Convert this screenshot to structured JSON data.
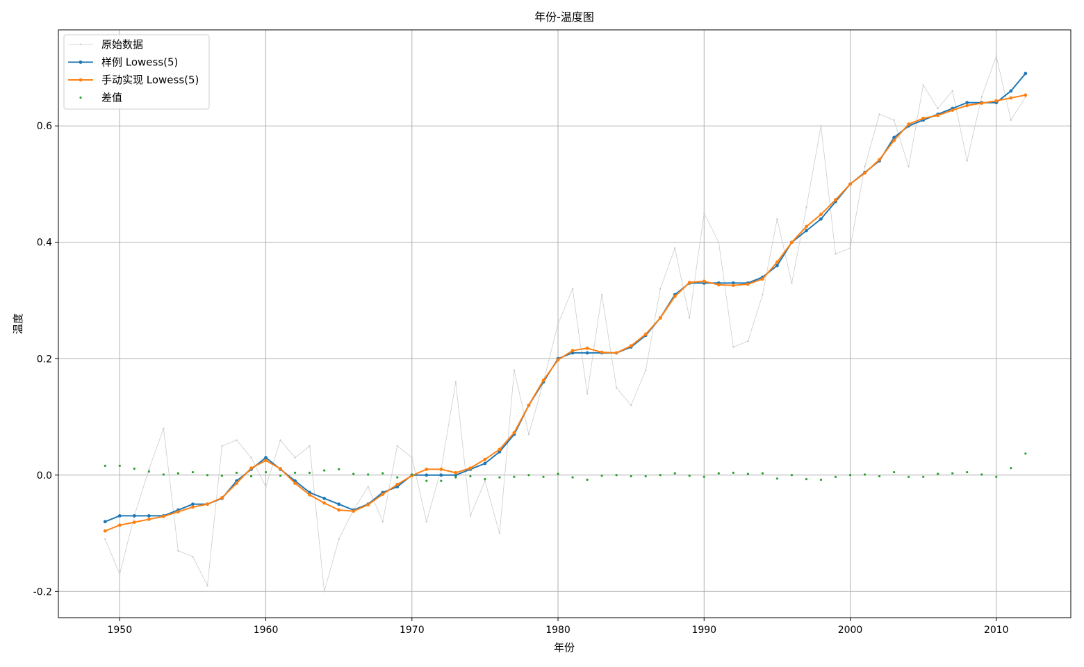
{
  "chart_data": {
    "type": "line",
    "title": "年份-温度图",
    "xlabel": "年份",
    "ylabel": "温度",
    "xlim": [
      1945.8,
      2015.1
    ],
    "ylim": [
      -0.245,
      0.765
    ],
    "xticks": [
      1950,
      1960,
      1970,
      1980,
      1990,
      2000,
      2010
    ],
    "xtick_labels": [
      "1950",
      "1960",
      "1970",
      "1980",
      "1990",
      "2000",
      "2010"
    ],
    "yticks": [
      -0.2,
      0.0,
      0.2,
      0.4,
      0.6
    ],
    "ytick_labels": [
      "-0.2",
      "0.0",
      "0.2",
      "0.4",
      "0.6"
    ],
    "grid": true,
    "legend_position": "top-left",
    "x": [
      1949,
      1950,
      1951,
      1952,
      1953,
      1954,
      1955,
      1956,
      1957,
      1958,
      1959,
      1960,
      1961,
      1962,
      1963,
      1964,
      1965,
      1966,
      1967,
      1968,
      1969,
      1970,
      1971,
      1972,
      1973,
      1974,
      1975,
      1976,
      1977,
      1978,
      1979,
      1980,
      1981,
      1982,
      1983,
      1984,
      1985,
      1986,
      1987,
      1988,
      1989,
      1990,
      1991,
      1992,
      1993,
      1994,
      1995,
      1996,
      1997,
      1998,
      1999,
      2000,
      2001,
      2002,
      2003,
      2004,
      2005,
      2006,
      2007,
      2008,
      2009,
      2010,
      2011,
      2012
    ],
    "series": [
      {
        "name": "原始数据",
        "color": "#cccccc",
        "style": "thin-line",
        "values": [
          -0.11,
          -0.17,
          -0.07,
          0.01,
          0.08,
          -0.13,
          -0.14,
          -0.19,
          0.05,
          0.06,
          0.03,
          -0.02,
          0.06,
          0.03,
          0.05,
          -0.2,
          -0.11,
          -0.06,
          -0.02,
          -0.08,
          0.05,
          0.03,
          -0.08,
          0.01,
          0.16,
          -0.07,
          -0.01,
          -0.1,
          0.18,
          0.07,
          0.16,
          0.26,
          0.32,
          0.14,
          0.31,
          0.15,
          0.12,
          0.18,
          0.32,
          0.39,
          0.27,
          0.45,
          0.4,
          0.22,
          0.23,
          0.31,
          0.44,
          0.33,
          0.46,
          0.6,
          0.38,
          0.39,
          0.53,
          0.62,
          0.61,
          0.53,
          0.67,
          0.63,
          0.66,
          0.54,
          0.65,
          0.72,
          0.61,
          0.65
        ]
      },
      {
        "name": "样例 Lowess(5)",
        "color": "#1f77b4",
        "style": "line-marker",
        "values": [
          -0.08,
          -0.07,
          -0.07,
          -0.07,
          -0.07,
          -0.06,
          -0.05,
          -0.05,
          -0.04,
          -0.01,
          0.01,
          0.03,
          0.01,
          -0.01,
          -0.03,
          -0.04,
          -0.05,
          -0.06,
          -0.05,
          -0.03,
          -0.02,
          0.0,
          0.0,
          0.0,
          0.0,
          0.01,
          0.02,
          0.04,
          0.07,
          0.12,
          0.16,
          0.2,
          0.21,
          0.21,
          0.21,
          0.21,
          0.22,
          0.24,
          0.27,
          0.31,
          0.33,
          0.33,
          0.33,
          0.33,
          0.33,
          0.34,
          0.36,
          0.4,
          0.42,
          0.44,
          0.47,
          0.5,
          0.52,
          0.54,
          0.58,
          0.6,
          0.61,
          0.62,
          0.63,
          0.64,
          0.64,
          0.64,
          0.66,
          0.69
        ]
      },
      {
        "name": "手动实现 Lowess(5)",
        "color": "#ff7f0e",
        "style": "line-marker",
        "values": [
          -0.096,
          -0.086,
          -0.081,
          -0.076,
          -0.071,
          -0.063,
          -0.055,
          -0.05,
          -0.039,
          -0.014,
          0.012,
          0.025,
          0.011,
          -0.014,
          -0.034,
          -0.048,
          -0.06,
          -0.062,
          -0.051,
          -0.033,
          -0.016,
          -0.001,
          0.01,
          0.01,
          0.004,
          0.012,
          0.027,
          0.044,
          0.073,
          0.12,
          0.163,
          0.198,
          0.214,
          0.218,
          0.211,
          0.21,
          0.222,
          0.242,
          0.27,
          0.307,
          0.331,
          0.333,
          0.327,
          0.326,
          0.328,
          0.337,
          0.366,
          0.4,
          0.427,
          0.448,
          0.473,
          0.5,
          0.519,
          0.542,
          0.575,
          0.603,
          0.613,
          0.618,
          0.627,
          0.635,
          0.639,
          0.643,
          0.648,
          0.653
        ]
      },
      {
        "name": "差值",
        "color": "#2ca02c",
        "style": "dots",
        "values": [
          0.016,
          0.016,
          0.011,
          0.006,
          0.001,
          0.003,
          0.005,
          0.0,
          -0.001,
          0.004,
          -0.002,
          0.005,
          -0.001,
          0.004,
          0.004,
          0.008,
          0.01,
          0.002,
          0.001,
          0.003,
          -0.004,
          0.001,
          -0.01,
          -0.01,
          -0.004,
          -0.002,
          -0.007,
          -0.004,
          -0.003,
          0.0,
          -0.003,
          0.002,
          -0.004,
          -0.008,
          -0.001,
          0.0,
          -0.002,
          -0.002,
          0.0,
          0.003,
          -0.001,
          -0.003,
          0.003,
          0.004,
          0.002,
          0.003,
          -0.006,
          0.0,
          -0.007,
          -0.008,
          -0.003,
          0.0,
          0.001,
          -0.002,
          0.005,
          -0.003,
          -0.003,
          0.002,
          0.003,
          0.005,
          0.001,
          -0.003,
          0.012,
          0.037
        ]
      }
    ]
  }
}
